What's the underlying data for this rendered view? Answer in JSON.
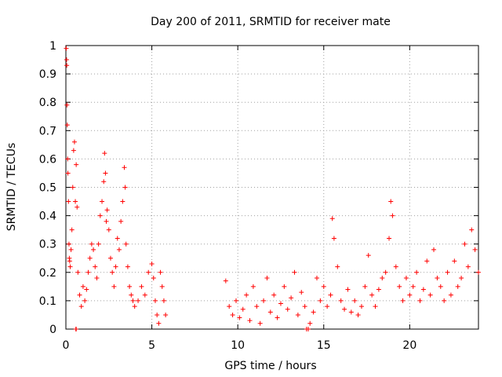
{
  "chart_data": {
    "type": "scatter",
    "title": "Day 200 of 2011, SRMTID for receiver mate",
    "xlabel": "GPS time / hours",
    "ylabel": "SRMTID / TECUs",
    "xlim": [
      0,
      24
    ],
    "ylim": [
      0,
      1
    ],
    "xticks": [
      0,
      5,
      10,
      15,
      20
    ],
    "xtick_labels": [
      "0",
      "5",
      "10",
      "15",
      "20"
    ],
    "yticks": [
      0,
      0.1,
      0.2,
      0.3,
      0.4,
      0.5,
      0.6,
      0.7,
      0.8,
      0.9,
      1
    ],
    "ytick_labels": [
      "0",
      "0.1",
      "0.2",
      "0.3",
      "0.4",
      "0.5",
      "0.6",
      "0.7",
      "0.8",
      "0.9",
      "1"
    ],
    "grid": true,
    "marker": "+",
    "series": [
      {
        "name": "SRMTID",
        "color": "#ff0000",
        "x": [
          0.02,
          0.04,
          0.05,
          0.06,
          0.08,
          0.1,
          0.12,
          0.15,
          0.18,
          0.2,
          0.22,
          0.25,
          0.3,
          0.35,
          0.4,
          0.45,
          0.5,
          0.55,
          0.6,
          0.65,
          0.7,
          0.8,
          0.9,
          1.0,
          1.1,
          1.2,
          1.3,
          1.4,
          1.5,
          1.6,
          1.7,
          1.8,
          1.9,
          2.0,
          2.1,
          2.2,
          2.25,
          2.3,
          2.35,
          2.4,
          2.5,
          2.6,
          2.7,
          2.8,
          2.9,
          3.0,
          3.1,
          3.2,
          3.3,
          3.4,
          3.45,
          3.5,
          3.6,
          3.7,
          3.8,
          3.9,
          4.0,
          4.2,
          4.4,
          4.6,
          4.8,
          5.0,
          5.1,
          5.2,
          5.3,
          5.4,
          5.5,
          5.6,
          5.7,
          5.8,
          0.58,
          0.6,
          9.3,
          9.5,
          9.7,
          9.9,
          10.1,
          10.3,
          10.5,
          10.7,
          10.9,
          11.1,
          11.3,
          11.5,
          11.7,
          11.9,
          12.1,
          12.3,
          12.5,
          12.7,
          12.9,
          13.1,
          13.3,
          13.5,
          13.7,
          13.9,
          14.0,
          14.1,
          14.2,
          14.4,
          14.6,
          14.8,
          15.0,
          15.2,
          15.4,
          15.5,
          15.6,
          15.8,
          16.0,
          16.2,
          16.4,
          16.6,
          16.8,
          17.0,
          17.2,
          17.4,
          17.6,
          17.8,
          18.0,
          18.2,
          18.4,
          18.6,
          18.8,
          18.9,
          19.0,
          19.2,
          19.4,
          19.6,
          19.8,
          20.0,
          20.2,
          20.4,
          20.6,
          20.8,
          21.0,
          21.2,
          21.4,
          21.6,
          21.8,
          22.0,
          22.2,
          22.4,
          22.6,
          22.8,
          23.0,
          23.2,
          23.4,
          23.6,
          23.8,
          24.0
        ],
        "y": [
          0.99,
          0.95,
          0.93,
          0.79,
          0.72,
          0.6,
          0.55,
          0.45,
          0.3,
          0.25,
          0.24,
          0.22,
          0.28,
          0.35,
          0.5,
          0.63,
          0.66,
          0.45,
          0.58,
          0.43,
          0.2,
          0.12,
          0.08,
          0.15,
          0.1,
          0.14,
          0.2,
          0.25,
          0.3,
          0.28,
          0.22,
          0.18,
          0.3,
          0.4,
          0.45,
          0.52,
          0.62,
          0.55,
          0.38,
          0.42,
          0.35,
          0.25,
          0.2,
          0.15,
          0.22,
          0.32,
          0.28,
          0.38,
          0.45,
          0.57,
          0.5,
          0.3,
          0.22,
          0.15,
          0.12,
          0.1,
          0.08,
          0.1,
          0.15,
          0.12,
          0.2,
          0.23,
          0.18,
          0.1,
          0.05,
          0.02,
          0.2,
          0.15,
          0.1,
          0.05,
          0.0,
          0.0,
          0.17,
          0.08,
          0.05,
          0.1,
          0.04,
          0.07,
          0.12,
          0.03,
          0.15,
          0.08,
          0.02,
          0.1,
          0.18,
          0.06,
          0.12,
          0.04,
          0.09,
          0.15,
          0.07,
          0.11,
          0.2,
          0.05,
          0.13,
          0.08,
          0.0,
          0.0,
          0.02,
          0.06,
          0.18,
          0.1,
          0.15,
          0.08,
          0.12,
          0.39,
          0.32,
          0.22,
          0.1,
          0.07,
          0.14,
          0.06,
          0.1,
          0.05,
          0.08,
          0.15,
          0.26,
          0.12,
          0.08,
          0.14,
          0.18,
          0.2,
          0.32,
          0.45,
          0.4,
          0.22,
          0.15,
          0.1,
          0.18,
          0.12,
          0.15,
          0.2,
          0.1,
          0.14,
          0.24,
          0.12,
          0.28,
          0.18,
          0.15,
          0.1,
          0.2,
          0.12,
          0.24,
          0.15,
          0.18,
          0.3,
          0.22,
          0.35,
          0.28,
          0.2
        ]
      }
    ]
  }
}
